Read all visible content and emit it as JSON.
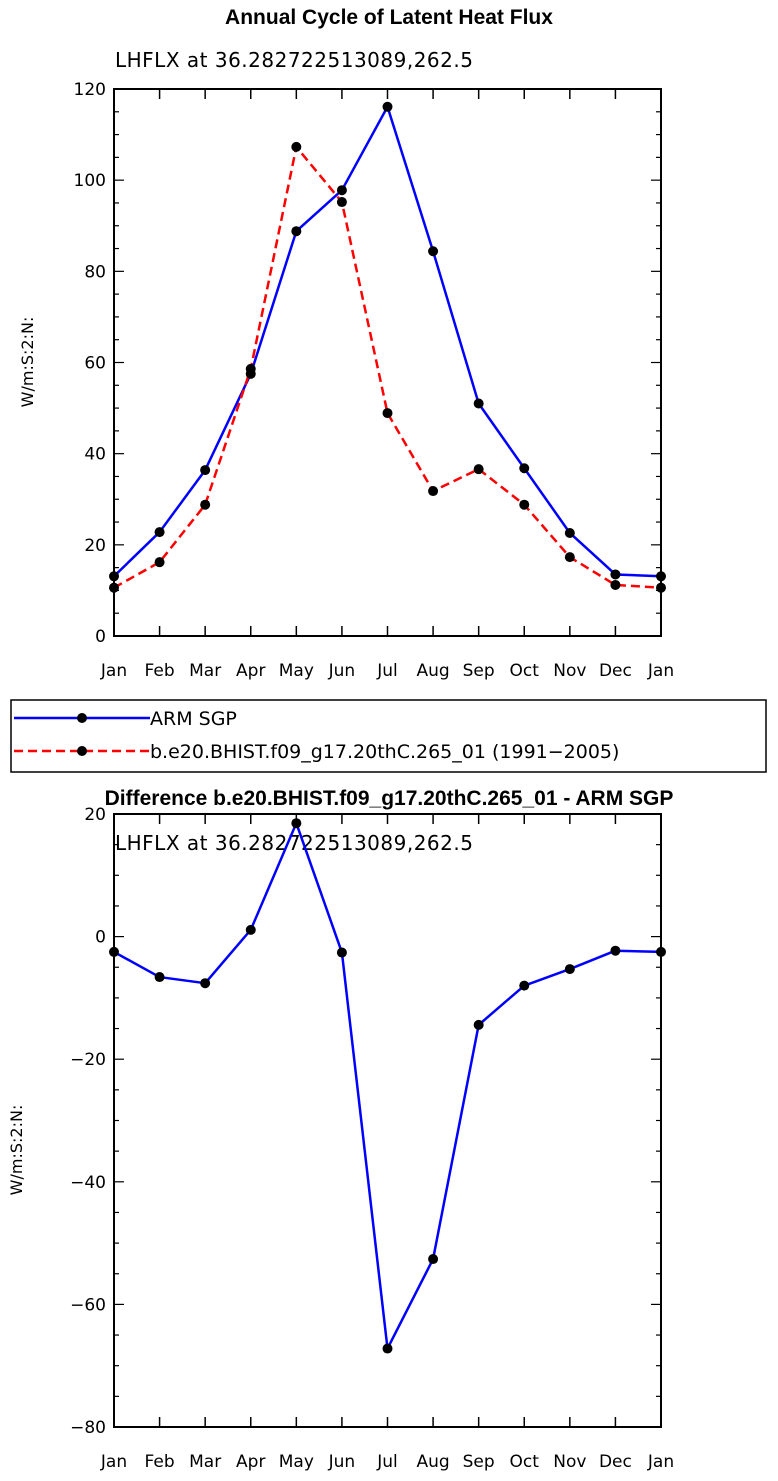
{
  "chart_data": [
    {
      "type": "line",
      "title": "Annual Cycle of Latent Heat Flux",
      "subtitle": "LHFLX at 36.282722513089,262.5",
      "xlabel": "",
      "ylabel": "W/m:S:2:N:",
      "categories": [
        "Jan",
        "Feb",
        "Mar",
        "Apr",
        "May",
        "Jun",
        "Jul",
        "Aug",
        "Sep",
        "Oct",
        "Nov",
        "Dec",
        "Jan"
      ],
      "ylim": [
        0,
        120
      ],
      "yticks": [
        0,
        20,
        40,
        60,
        80,
        100,
        120
      ],
      "grid": false,
      "series": [
        {
          "name": "ARM SGP",
          "color": "#0000ff",
          "dash": "solid",
          "values": [
            13.1,
            22.8,
            36.4,
            57.5,
            88.8,
            97.8,
            116.1,
            84.4,
            51.0,
            36.8,
            22.6,
            13.5,
            13.1
          ]
        },
        {
          "name": "b.e20.BHIST.f09_g17.20thC.265_01 (1991−2005)",
          "color": "#ff0000",
          "dash": "dashed",
          "values": [
            10.6,
            16.2,
            28.8,
            58.6,
            107.3,
            95.2,
            48.9,
            31.8,
            36.6,
            28.8,
            17.3,
            11.2,
            10.6
          ]
        }
      ],
      "legend": {
        "placement": "below",
        "entries": [
          "ARM SGP",
          "b.e20.BHIST.f09_g17.20thC.265_01 (1991−2005)"
        ]
      }
    },
    {
      "type": "line",
      "title": "Difference b.e20.BHIST.f09_g17.20thC.265_01 - ARM SGP",
      "subtitle": "LHFLX at 36.282722513089,262.5",
      "xlabel": "",
      "ylabel": "W/m:S:2:N:",
      "categories": [
        "Jan",
        "Feb",
        "Mar",
        "Apr",
        "May",
        "Jun",
        "Jul",
        "Aug",
        "Sep",
        "Oct",
        "Nov",
        "Dec",
        "Jan"
      ],
      "ylim": [
        -80,
        20
      ],
      "yticks": [
        -80,
        -60,
        -40,
        -20,
        0,
        20
      ],
      "ytick_labels": [
        "−80",
        "−60",
        "−40",
        "−20",
        "0",
        "20"
      ],
      "grid": false,
      "series": [
        {
          "name": "Difference",
          "color": "#0000ff",
          "dash": "solid",
          "values": [
            -2.5,
            -6.6,
            -7.6,
            1.1,
            18.5,
            -2.6,
            -67.2,
            -52.6,
            -14.4,
            -8.0,
            -5.3,
            -2.3,
            -2.5
          ]
        }
      ]
    }
  ]
}
